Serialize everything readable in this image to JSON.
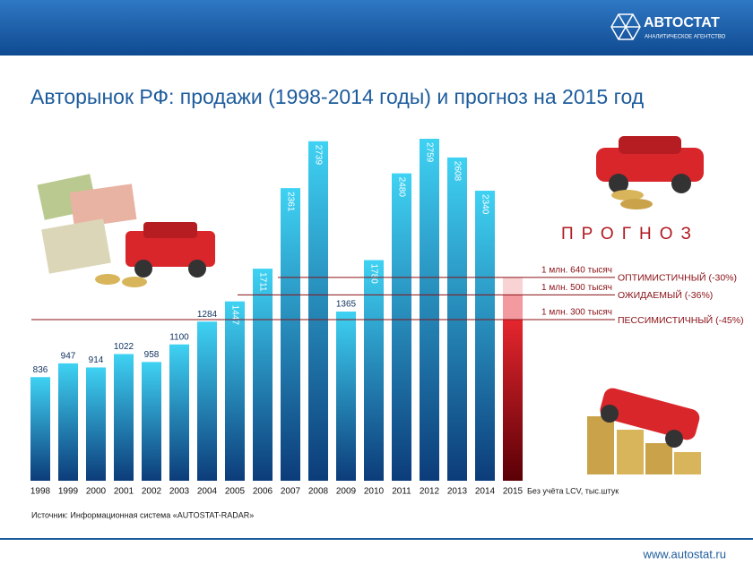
{
  "header": {
    "logo": "АВТОСТАТ",
    "logo_subtitle": "АНАЛИТИЧЕСКОЕ АГЕНТСТВО"
  },
  "chart_data": {
    "type": "bar",
    "title": "Авторынок РФ: продажи (1998-2014 годы) и прогноз на 2015 год",
    "categories": [
      "1998",
      "1999",
      "2000",
      "2001",
      "2002",
      "2003",
      "2004",
      "2005",
      "2006",
      "2007",
      "2008",
      "2009",
      "2010",
      "2011",
      "2012",
      "2013",
      "2014",
      "2015"
    ],
    "values": [
      836,
      947,
      914,
      1022,
      958,
      1100,
      1284,
      1447,
      1711,
      2361,
      2739,
      1365,
      1780,
      2480,
      2759,
      2608,
      2340,
      null
    ],
    "colors": [
      "#3fd2f3",
      "#0c3c7a"
    ],
    "forecast": {
      "label": "ПРОГНОЗ",
      "scenarios": [
        {
          "name": "ОПТИМИСТИЧНЫЙ (-30%)",
          "value": 1640,
          "value_label": "1 млн. 640 тысяч",
          "color": "#f9d3d3"
        },
        {
          "name": "ОЖИДАЕМЫЙ (-36%)",
          "value": 1500,
          "value_label": "1 млн. 500 тысяч",
          "color": "#f29aa0"
        },
        {
          "name": "ПЕССИМИСТИЧНЫЙ (-45%)",
          "value": 1300,
          "value_label": "1 млн. 300 тысяч",
          "color": "#c4141c"
        }
      ]
    },
    "note": "Без учёта LCV, тыс.штук",
    "source": "Источник: Информационная система «AUTOSTAT-RADAR»"
  },
  "footer": {
    "url": "www.autostat.ru"
  }
}
